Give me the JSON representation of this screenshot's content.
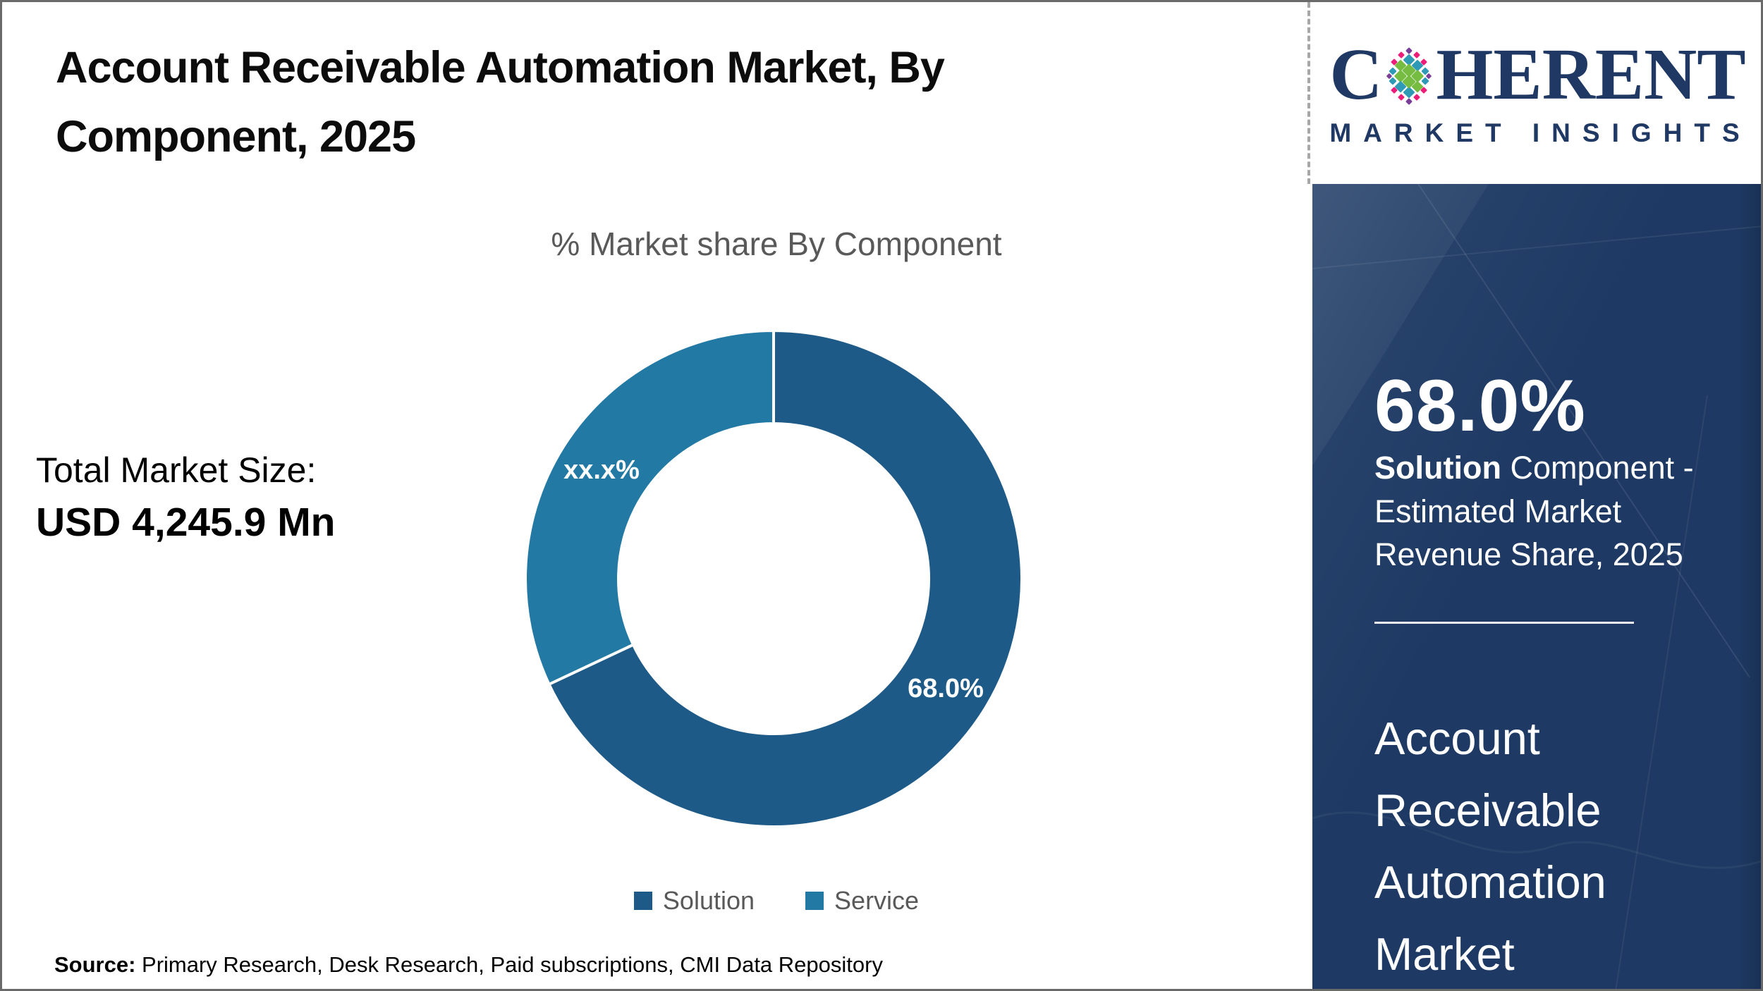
{
  "header": {
    "title": "Account Receivable Automation Market, By Component, 2025"
  },
  "brand": {
    "logo_first_letter": "C",
    "logo_rest": "HERENT",
    "tagline": "MARKET INSIGHTS",
    "logo_color": "#1f3864",
    "globe_colors": {
      "green": "#76bc43",
      "teal": "#2e9ab5",
      "magenta": "#ec1e79",
      "purple": "#7b3e98"
    }
  },
  "market_size": {
    "label": "Total Market Size:",
    "value": "USD 4,245.9 Mn"
  },
  "chart_data": {
    "type": "pie",
    "donut": true,
    "title": "% Market share By Component",
    "categories": [
      "Solution",
      "Service"
    ],
    "values": [
      68.0,
      32.0
    ],
    "slice_labels": [
      "68.0%",
      "xx.x%"
    ],
    "colors": [
      "#1d5a87",
      "#2179a4"
    ],
    "label_color": "#ffffff",
    "legend_position": "bottom",
    "start_angle_deg": 0,
    "direction": "clockwise",
    "inner_radius_ratio": 0.625
  },
  "sidebar": {
    "stat_value": "68.0%",
    "stat_desc_bold": "Solution",
    "stat_desc_rest": " Component - Estimated Market Revenue Share, 2025",
    "market_name": "Account Receivable Automation Market",
    "background_color": "#1e3a64"
  },
  "footer": {
    "source_label": "Source:",
    "source_text": " Primary Research, Desk Research, Paid subscriptions, CMI Data Repository"
  }
}
